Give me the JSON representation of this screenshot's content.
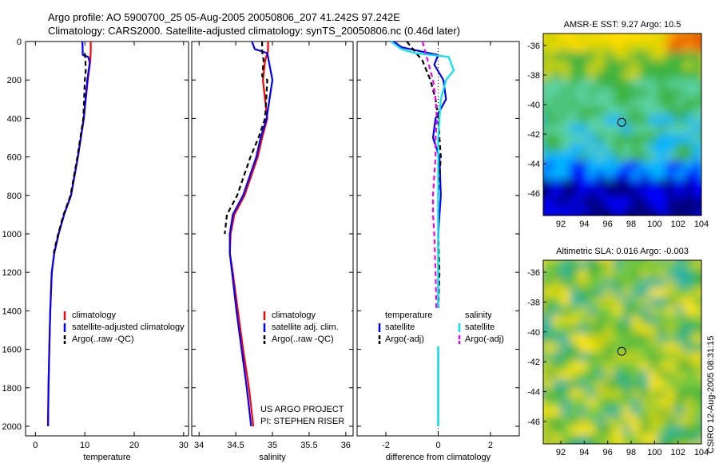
{
  "figure": {
    "title_line1": "Argo profile: AO 5900700_25 05-Aug-2005 20050806_207 41.242S 97.242E",
    "title_line2": "Climatology: CARS2000. Satellite-adjusted climatology: synTS_20050806.nc (0.46d later)",
    "credit": "CSIRO 12-Aug-2005 08:31:15",
    "project_line1": "US ARGO PROJECT",
    "project_line2": "PI: STEPHEN RISER"
  },
  "colors": {
    "climatology": "#ff0000",
    "satellite": "#0000ff",
    "argo": "#000000",
    "salinity_satellite": "#00e5ee",
    "salinity_argo": "#ee00ee"
  },
  "chart_data": [
    {
      "type": "line",
      "id": "temperature",
      "xlabel": "temperature",
      "xlim": [
        -2,
        31
      ],
      "ylim": [
        0,
        2050
      ],
      "y_reversed": true,
      "xticks": [
        0,
        10,
        20,
        30
      ],
      "yticks": [
        0,
        200,
        400,
        600,
        800,
        1000,
        1200,
        1400,
        1600,
        1800,
        2000
      ],
      "legend": [
        "climatology",
        "satellite-adjusted climatology",
        "Argo(..raw -QC)"
      ],
      "legend_position": "lower-right",
      "series": [
        {
          "name": "climatology",
          "style": "solid",
          "color": "#ff0000",
          "x": [
            11.2,
            11.2,
            11.1,
            10.6,
            9.8,
            8.6,
            7.2,
            5.8,
            4.7,
            3.8,
            3.3,
            3.0,
            2.8,
            2.65,
            2.55
          ],
          "y": [
            0,
            50,
            100,
            200,
            400,
            600,
            800,
            900,
            1000,
            1100,
            1200,
            1400,
            1600,
            1800,
            2000
          ]
        },
        {
          "name": "satellite-adjusted climatology",
          "style": "solid",
          "color": "#0000ff",
          "x": [
            9.5,
            9.6,
            10.7,
            11.0,
            10.5,
            9.8,
            8.6,
            7.2,
            5.8,
            4.7,
            3.8,
            3.3,
            3.0,
            2.8,
            2.65,
            2.55
          ],
          "y": [
            0,
            70,
            80,
            110,
            200,
            400,
            600,
            800,
            900,
            1000,
            1100,
            1200,
            1400,
            1600,
            1800,
            2000
          ]
        },
        {
          "name": "Argo(..raw -QC)",
          "style": "dashed",
          "color": "#000000",
          "x": [
            10.0,
            10.1,
            10.2,
            10.0,
            9.7,
            8.5,
            7.1,
            5.7,
            4.6,
            3.7
          ],
          "y": [
            60,
            90,
            150,
            200,
            400,
            600,
            800,
            900,
            1000,
            1100
          ]
        }
      ]
    },
    {
      "type": "line",
      "id": "salinity",
      "xlabel": "salinity",
      "xlim": [
        33.9,
        36.1
      ],
      "ylim": [
        0,
        2050
      ],
      "y_reversed": true,
      "xticks": [
        34,
        34.5,
        35,
        35.5,
        36
      ],
      "legend": [
        "climatology",
        "satellite adj. clim.",
        "Argo(..raw -QC)"
      ],
      "legend_position": "lower-right",
      "series": [
        {
          "name": "climatology",
          "style": "solid",
          "color": "#ff0000",
          "x": [
            34.94,
            34.94,
            34.9,
            34.87,
            34.9,
            34.93,
            34.86,
            34.8,
            34.62,
            34.48,
            34.43,
            34.42,
            34.46,
            34.53,
            34.6,
            34.68,
            34.74
          ],
          "y": [
            0,
            50,
            100,
            200,
            300,
            400,
            500,
            600,
            800,
            900,
            1000,
            1100,
            1200,
            1400,
            1600,
            1800,
            2000
          ]
        },
        {
          "name": "satellite adj. clim.",
          "style": "solid",
          "color": "#0000ff",
          "x": [
            34.72,
            34.76,
            34.93,
            34.95,
            35.0,
            34.92,
            34.84,
            34.78,
            34.6,
            34.46,
            34.42,
            34.42,
            34.45,
            34.51,
            34.58,
            34.65,
            34.71
          ],
          "y": [
            0,
            40,
            60,
            100,
            200,
            400,
            500,
            600,
            800,
            900,
            1000,
            1100,
            1200,
            1400,
            1600,
            1800,
            2000
          ]
        },
        {
          "name": "Argo(..raw -QC)",
          "style": "dashed",
          "color": "#000000",
          "x": [
            34.86,
            34.86,
            34.88,
            34.86,
            34.93,
            34.9,
            34.81,
            34.7,
            34.52,
            34.38,
            34.35
          ],
          "y": [
            0,
            50,
            100,
            180,
            200,
            400,
            500,
            600,
            800,
            900,
            1000
          ]
        }
      ]
    },
    {
      "type": "line",
      "id": "difference",
      "xlabel": "difference from climatology",
      "xlim": [
        -3.1,
        3.1
      ],
      "ylim": [
        0,
        2050
      ],
      "y_reversed": true,
      "xticks": [
        -2,
        0,
        2
      ],
      "xtick_labels": [
        "-2",
        "0",
        "2"
      ],
      "legend_groups": [
        {
          "heading": "temperature",
          "items": [
            "satellite",
            "Argo(-adj)"
          ]
        },
        {
          "heading": "salinity",
          "items": [
            "satellite",
            "Argo(-adj)"
          ]
        }
      ],
      "legend_position": "lower-right",
      "series": [
        {
          "name": "temperature satellite",
          "style": "solid",
          "color": "#0000ff",
          "x": [
            -1.7,
            -1.4,
            0.0,
            -0.15,
            0.2,
            0.3,
            -0.1,
            -0.2,
            0.05,
            0.1,
            0.0,
            0.0,
            0.0,
            0.0,
            0.0
          ],
          "y": [
            0,
            30,
            70,
            120,
            200,
            300,
            400,
            500,
            600,
            800,
            1000,
            1200,
            1600,
            1800,
            2000
          ]
        },
        {
          "name": "temperature Argo(-adj)",
          "style": "dashed",
          "color": "#000000",
          "x": [
            -1.2,
            -0.9,
            -0.6,
            -0.3,
            -0.1,
            0.0,
            0.05,
            0.1,
            0.05,
            0.0,
            0.0,
            0.05,
            0.0,
            0.0
          ],
          "y": [
            0,
            50,
            100,
            200,
            300,
            400,
            500,
            600,
            700,
            800,
            1000,
            1200,
            1400,
            1500
          ]
        },
        {
          "name": "salinity satellite",
          "style": "solid",
          "color": "#00e5ee",
          "x": [
            -1.8,
            -1.4,
            -0.9,
            0.4,
            0.6,
            0.3,
            0.1,
            0.05,
            0.0,
            0.0,
            0.0,
            0.0,
            0.0,
            0.0
          ],
          "y": [
            0,
            40,
            60,
            80,
            150,
            200,
            300,
            400,
            500,
            600,
            800,
            1200,
            1600,
            2000
          ]
        },
        {
          "name": "salinity Argo(-adj)",
          "style": "dashed",
          "color": "#ee00ee",
          "x": [
            -0.6,
            -0.4,
            -0.2,
            -0.1,
            -0.05,
            -0.1,
            -0.1,
            -0.15,
            -0.2,
            -0.2,
            -0.15,
            -0.1,
            -0.05
          ],
          "y": [
            0,
            100,
            200,
            300,
            400,
            500,
            600,
            700,
            800,
            900,
            1000,
            1200,
            1500
          ]
        }
      ],
      "reference_lines": [
        {
          "style": "dotted",
          "color": "#000000",
          "x": [
            0.0,
            0.0
          ],
          "y": [
            0,
            2050
          ]
        }
      ]
    },
    {
      "type": "heatmap",
      "id": "sst_map",
      "title": "AMSR-E SST: 9.27 Argo: 10.5",
      "xlim": [
        90.5,
        104
      ],
      "ylim": [
        -47.5,
        -35.2
      ],
      "xticks": [
        92,
        94,
        96,
        98,
        100,
        102,
        104
      ],
      "yticks": [
        -36,
        -38,
        -40,
        -42,
        -44,
        -46
      ],
      "marker": {
        "x": 97.2,
        "y": -41.2,
        "label": "profile position"
      },
      "colorscale": [
        "#00007f",
        "#0000ff",
        "#00b4ff",
        "#5ad2a0",
        "#3cb43c",
        "#c8d200",
        "#ffdc00",
        "#ffa000",
        "#e86000"
      ]
    },
    {
      "type": "heatmap",
      "id": "sla_map",
      "title": "Altimetric SLA: 0.016 Argo: -0.003",
      "xlim": [
        90.5,
        104
      ],
      "ylim": [
        -47.5,
        -35.2
      ],
      "xticks": [
        92,
        94,
        96,
        98,
        100,
        102,
        104
      ],
      "yticks": [
        -36,
        -38,
        -40,
        -42,
        -44,
        -46
      ],
      "marker": {
        "x": 97.2,
        "y": -41.3,
        "label": "profile position"
      },
      "colorscale": [
        "#28b4a0",
        "#3cb43c",
        "#78c83c",
        "#c8d200",
        "#ffe600"
      ]
    }
  ]
}
